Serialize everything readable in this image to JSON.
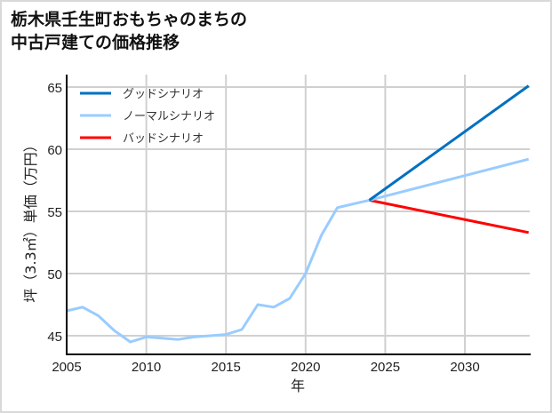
{
  "title": {
    "line1": "栃木県壬生町おもちゃのまちの",
    "line2": "中古戸建ての価格推移"
  },
  "axes": {
    "xlabel": "年",
    "ylabel": "坪（3.3㎡）単価（万円）",
    "xticks": [
      "2005",
      "2010",
      "2015",
      "2020",
      "2025",
      "2030"
    ],
    "yticks": [
      "45",
      "50",
      "55",
      "60",
      "65"
    ]
  },
  "legend": [
    {
      "label": "グッドシナリオ",
      "color": "#0070c0"
    },
    {
      "label": "ノーマルシナリオ",
      "color": "#99ccff"
    },
    {
      "label": "バッドシナリオ",
      "color": "#ff0000"
    }
  ],
  "chart_data": {
    "type": "line",
    "title": "栃木県壬生町おもちゃのまちの中古戸建ての価格推移",
    "xlabel": "年",
    "ylabel": "坪（3.3㎡）単価（万円）",
    "xlim": [
      2005,
      2034
    ],
    "ylim": [
      43.5,
      66
    ],
    "grid": true,
    "legend_position": "upper left",
    "series": [
      {
        "name": "ノーマルシナリオ (実績)",
        "color": "#99ccff",
        "x": [
          2005,
          2006,
          2007,
          2008,
          2009,
          2010,
          2011,
          2012,
          2013,
          2014,
          2015,
          2016,
          2017,
          2018,
          2019,
          2020,
          2021,
          2022,
          2023,
          2024
        ],
        "y": [
          47.0,
          47.3,
          46.6,
          45.4,
          44.5,
          44.9,
          44.8,
          44.7,
          44.9,
          45.0,
          45.1,
          45.5,
          47.5,
          47.3,
          48.0,
          50.0,
          53.1,
          55.3,
          55.6,
          55.9
        ]
      },
      {
        "name": "グッドシナリオ",
        "color": "#0070c0",
        "x": [
          2024,
          2034
        ],
        "y": [
          55.9,
          65.1
        ]
      },
      {
        "name": "ノーマルシナリオ",
        "color": "#99ccff",
        "x": [
          2024,
          2034
        ],
        "y": [
          55.9,
          59.2
        ]
      },
      {
        "name": "バッドシナリオ",
        "color": "#ff0000",
        "x": [
          2024,
          2034
        ],
        "y": [
          55.9,
          53.3
        ]
      }
    ]
  }
}
